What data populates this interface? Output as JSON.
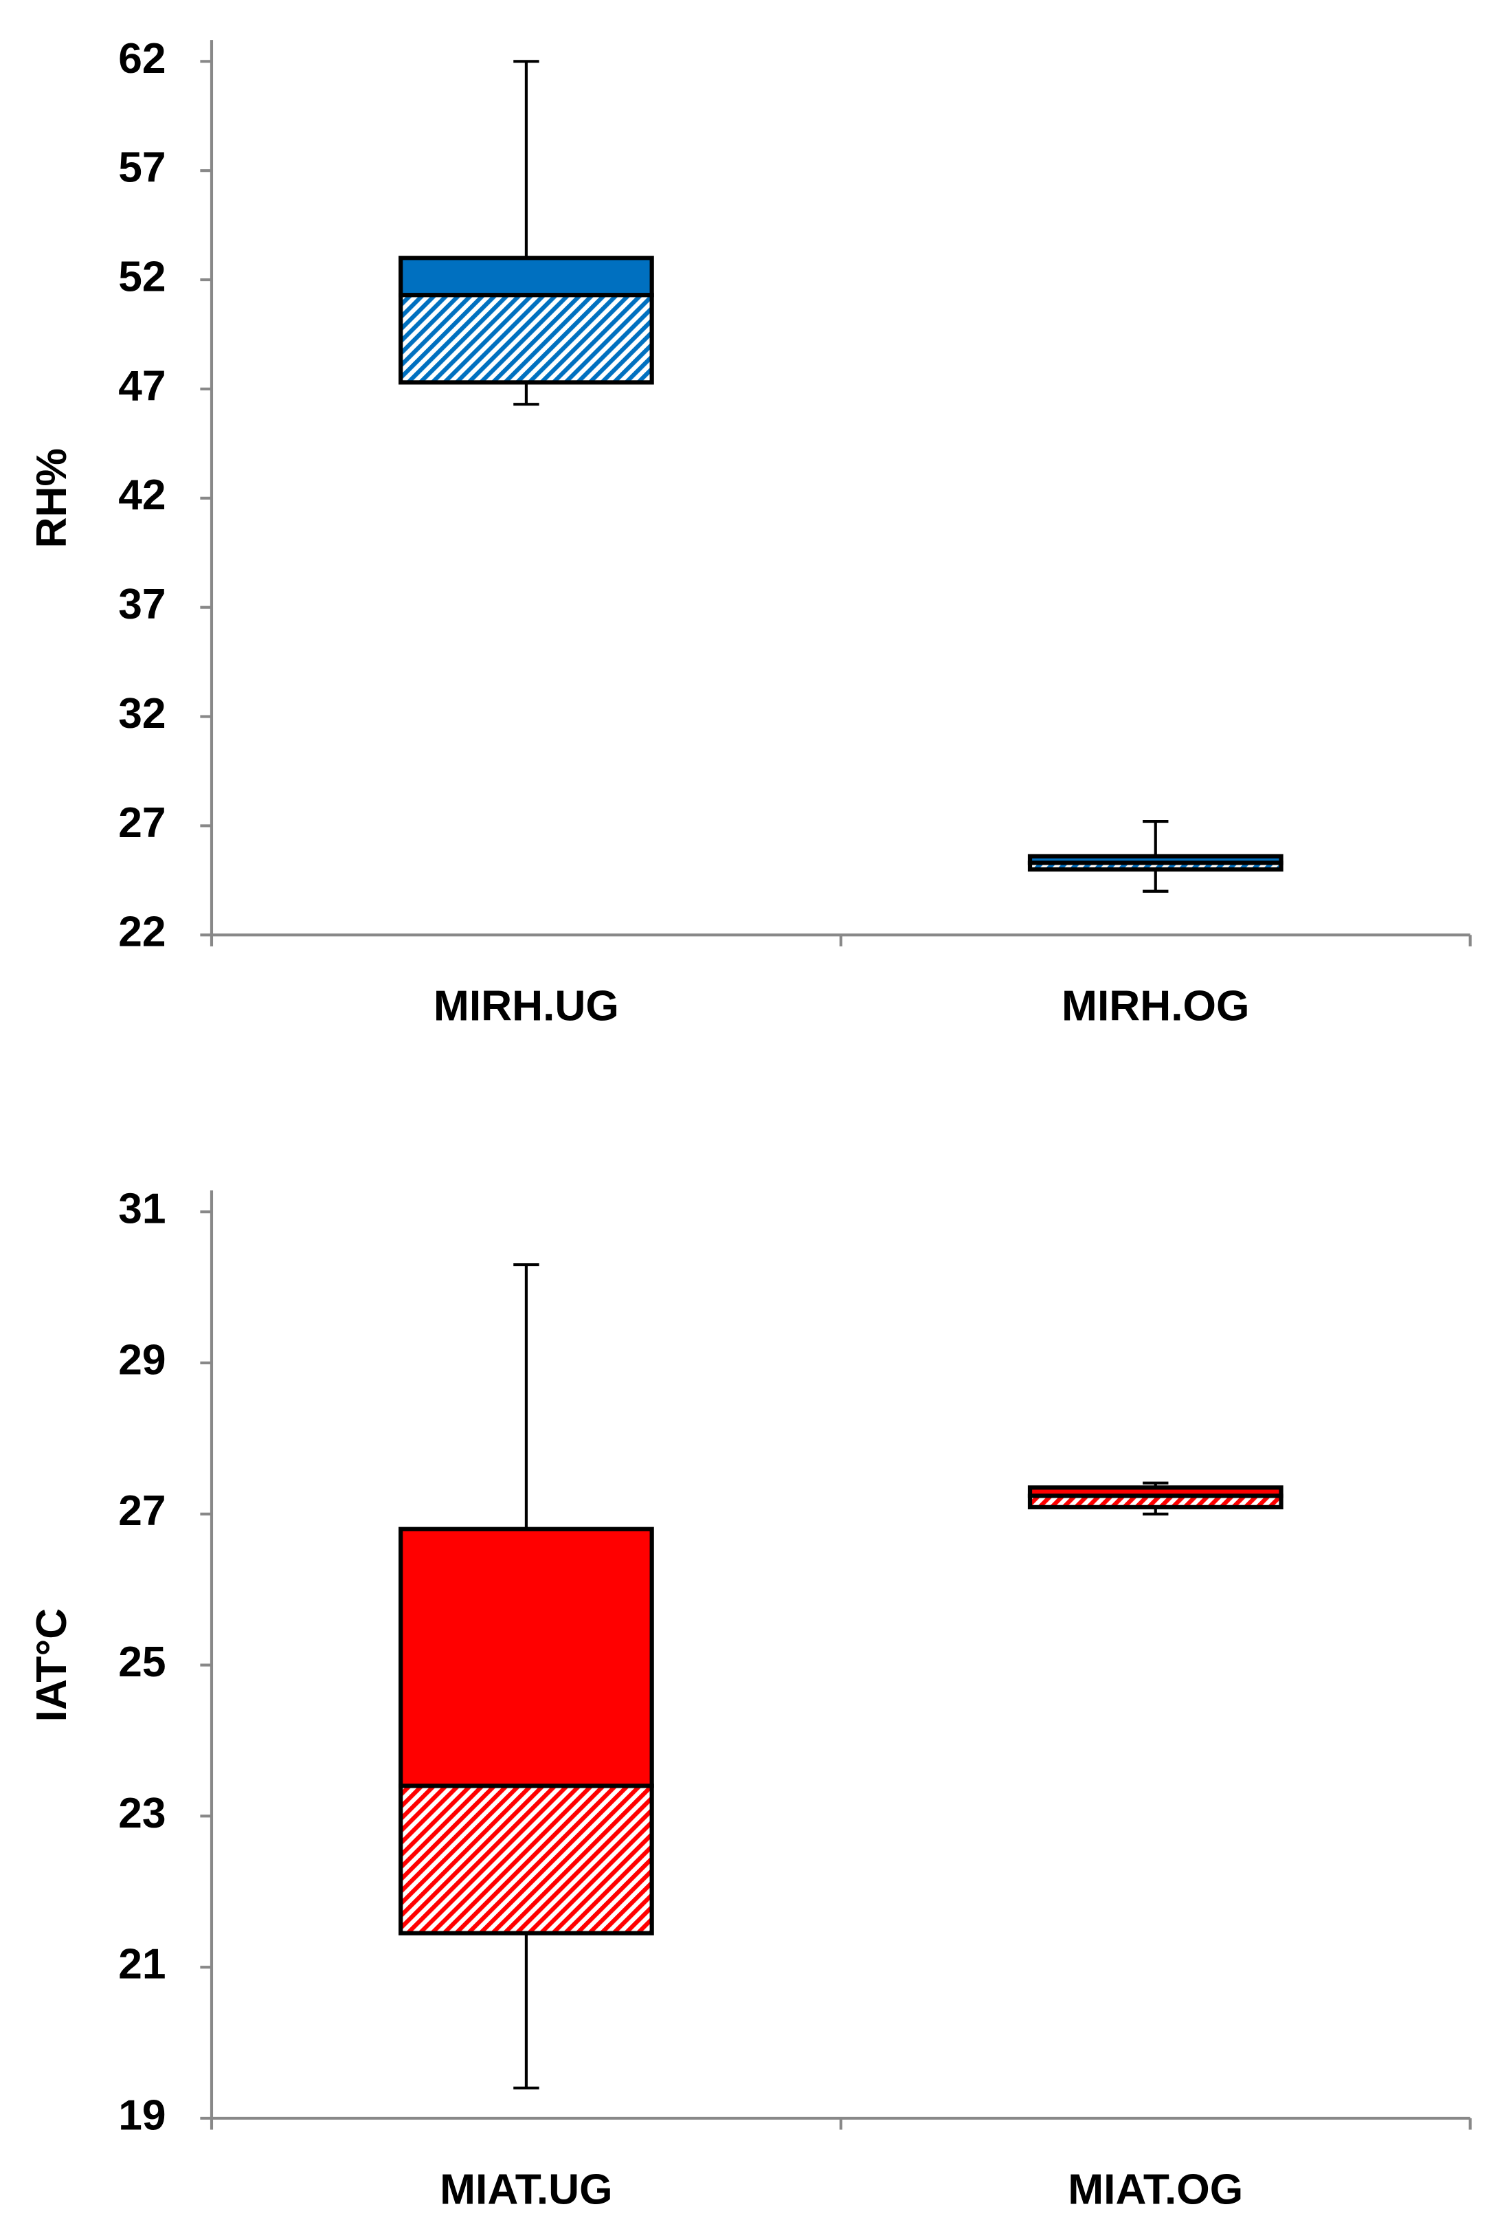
{
  "chart_data": [
    {
      "type": "box",
      "y_label": "RH%",
      "categories": [
        "MIRH.UG",
        "MIRH.OG"
      ],
      "color": "#0070c0",
      "boxes": [
        {
          "min": 46.3,
          "q1": 47.3,
          "median": 51.3,
          "q3": 53,
          "max": 62
        },
        {
          "min": 24,
          "q1": 25,
          "median": 25.3,
          "q3": 25.6,
          "max": 27.2
        }
      ],
      "ylim": [
        22,
        62
      ],
      "yticks": [
        22,
        27,
        32,
        37,
        42,
        47,
        52,
        57,
        62
      ]
    },
    {
      "type": "box",
      "y_label": "IAT°C",
      "categories": [
        "MIAT.UG",
        "MIAT.OG"
      ],
      "color": "#ff0000",
      "boxes": [
        {
          "min": 19.4,
          "q1": 21.45,
          "median": 23.4,
          "q3": 26.8,
          "max": 30.3
        },
        {
          "min": 27,
          "q1": 27.09,
          "median": 27.24,
          "q3": 27.35,
          "max": 27.41
        }
      ],
      "ylim": [
        19,
        31
      ],
      "yticks": [
        19,
        21,
        23,
        25,
        27,
        29,
        31
      ]
    }
  ]
}
